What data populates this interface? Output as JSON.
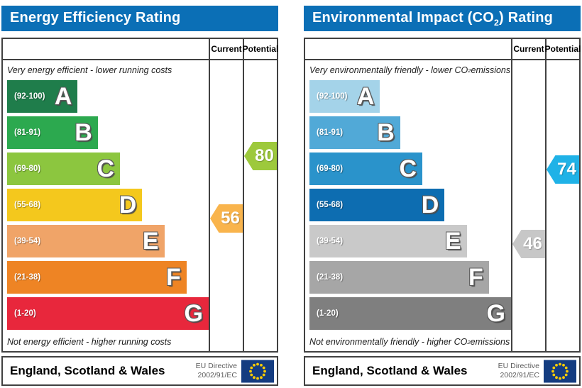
{
  "chart_data": [
    {
      "id": "energy-efficiency",
      "type": "bar",
      "title_prefix": "Energy Efficiency Rating",
      "title_sub": "",
      "title_suffix": "",
      "title_bg": "#0b6fb6",
      "columns": {
        "current": "Current",
        "potential": "Potential"
      },
      "top_caption_prefix": "Very energy efficient - lower running costs",
      "top_caption_sub": "",
      "top_caption_suffix": "",
      "bottom_caption_prefix": "Not energy efficient - higher running costs",
      "bottom_caption_sub": "",
      "bottom_caption_suffix": "",
      "ylim": [
        1,
        100
      ],
      "bands": [
        {
          "letter": "A",
          "range": "(92-100)",
          "color": "#1f7d4b",
          "width_pct": 35
        },
        {
          "letter": "B",
          "range": "(81-91)",
          "color": "#2ca94f",
          "width_pct": 45
        },
        {
          "letter": "C",
          "range": "(69-80)",
          "color": "#8cc63f",
          "width_pct": 56
        },
        {
          "letter": "D",
          "range": "(55-68)",
          "color": "#f4c81d",
          "width_pct": 67
        },
        {
          "letter": "E",
          "range": "(39-54)",
          "color": "#f0a468",
          "width_pct": 78
        },
        {
          "letter": "F",
          "range": "(21-38)",
          "color": "#ee8424",
          "width_pct": 89
        },
        {
          "letter": "G",
          "range": "(1-20)",
          "color": "#e8273c",
          "width_pct": 100
        }
      ],
      "current": {
        "value": 56,
        "band": "D",
        "color": "#f9b44c"
      },
      "potential": {
        "value": 80,
        "band": "C",
        "color": "#9dc93c"
      },
      "footer": {
        "region": "England, Scotland & Wales",
        "directive_line1": "EU Directive",
        "directive_line2": "2002/91/EC",
        "flag_bg": "#143c80",
        "flag_star_color": "#ffcc00"
      }
    },
    {
      "id": "environmental-impact-co2",
      "type": "bar",
      "title_prefix": "Environmental Impact (CO",
      "title_sub": "2",
      "title_suffix": ") Rating",
      "title_bg": "#0b6fb6",
      "columns": {
        "current": "Current",
        "potential": "Potential"
      },
      "top_caption_prefix": "Very environmentally friendly - lower CO",
      "top_caption_sub": "2",
      "top_caption_suffix": " emissions",
      "bottom_caption_prefix": "Not environmentally friendly - higher CO",
      "bottom_caption_sub": "2",
      "bottom_caption_suffix": " emissions",
      "ylim": [
        1,
        100
      ],
      "bands": [
        {
          "letter": "A",
          "range": "(92-100)",
          "color": "#a4d3e9",
          "width_pct": 35
        },
        {
          "letter": "B",
          "range": "(81-91)",
          "color": "#51a9d7",
          "width_pct": 45
        },
        {
          "letter": "C",
          "range": "(69-80)",
          "color": "#2a93cb",
          "width_pct": 56
        },
        {
          "letter": "D",
          "range": "(55-68)",
          "color": "#0d6db1",
          "width_pct": 67
        },
        {
          "letter": "E",
          "range": "(39-54)",
          "color": "#c9c9c9",
          "width_pct": 78
        },
        {
          "letter": "F",
          "range": "(21-38)",
          "color": "#a6a6a6",
          "width_pct": 89
        },
        {
          "letter": "G",
          "range": "(1-20)",
          "color": "#7f7f7f",
          "width_pct": 100
        }
      ],
      "current": {
        "value": 46,
        "band": "E",
        "color": "#c7c7c7"
      },
      "potential": {
        "value": 74,
        "band": "C",
        "color": "#1fb2e7"
      },
      "footer": {
        "region": "England, Scotland & Wales",
        "directive_line1": "EU Directive",
        "directive_line2": "2002/91/EC",
        "flag_bg": "#143c80",
        "flag_star_color": "#ffcc00"
      }
    }
  ]
}
